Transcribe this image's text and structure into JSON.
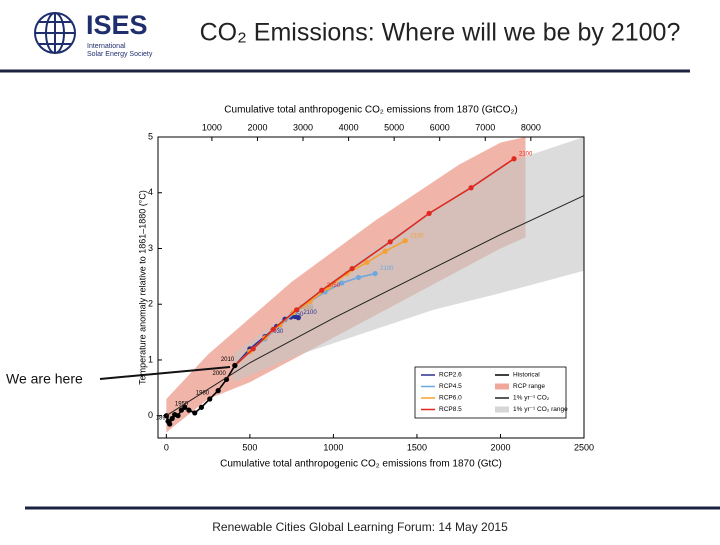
{
  "slide": {
    "logo_title": "ISES",
    "logo_subtitle": [
      "International",
      "Solar Energy Society"
    ],
    "title": "CO₂ Emissions:  Where will we be by 2100?",
    "annotation": "We are here",
    "footer": "Renewable Cities Global Learning Forum:  14 May 2015"
  },
  "chart_data": {
    "type": "line",
    "x2_label": "Cumulative total anthropogenic CO₂ emissions from 1870 (GtCO₂)",
    "x_label": "Cumulative total anthropogenic CO₂ emissions from 1870 (GtC)",
    "y_label": "Temperature anomaly relative to 1861–1880 (°C)",
    "xlim": [
      -50,
      2500
    ],
    "xticks": [
      0,
      500,
      1000,
      1500,
      2000,
      2500
    ],
    "x2lim": [
      -183,
      9167
    ],
    "x2ticks": [
      1000,
      2000,
      3000,
      4000,
      5000,
      6000,
      7000,
      8000
    ],
    "ylim": [
      -0.4,
      5
    ],
    "yticks": [
      0,
      1,
      2,
      3,
      4,
      5
    ],
    "legend": "lower right",
    "bands": [
      {
        "name": "RCP range",
        "color": "#e8826f",
        "x": [
          0,
          250,
          500,
          750,
          1000,
          1250,
          1500,
          1750,
          2000,
          2150
        ],
        "lower": [
          -0.3,
          0.3,
          0.6,
          1.0,
          1.4,
          1.8,
          2.2,
          2.6,
          3.0,
          3.2
        ],
        "upper": [
          0.3,
          1.1,
          1.75,
          2.4,
          2.95,
          3.5,
          4.0,
          4.5,
          4.9,
          5.0
        ]
      },
      {
        "name": "1% yr⁻¹ CO₂ range",
        "color": "#c4c4c4",
        "x": [
          400,
          800,
          1200,
          1600,
          2000,
          2500
        ],
        "lower": [
          0.6,
          1.1,
          1.5,
          1.9,
          2.2,
          2.6
        ],
        "upper": [
          1.1,
          2.0,
          2.9,
          3.7,
          4.5,
          5.0
        ]
      }
    ],
    "series": [
      {
        "name": "RCP2.6",
        "color": "#2b2f8f",
        "markers": true,
        "x": [
          410,
          500,
          590,
          660,
          710,
          745,
          770,
          790
        ],
        "values": [
          0.9,
          1.2,
          1.42,
          1.6,
          1.73,
          1.77,
          1.78,
          1.76
        ],
        "point_labels": [
          null,
          null,
          "2030",
          null,
          "2050",
          null,
          null,
          "2100"
        ]
      },
      {
        "name": "RCP4.5",
        "color": "#6fa8dc",
        "markers": true,
        "x": [
          410,
          500,
          590,
          680,
          770,
          860,
          950,
          1050,
          1150,
          1250
        ],
        "values": [
          0.9,
          1.15,
          1.38,
          1.62,
          1.85,
          2.05,
          2.22,
          2.38,
          2.48,
          2.55
        ],
        "point_labels": [
          null,
          null,
          null,
          null,
          "2050",
          null,
          null,
          null,
          null,
          "2100"
        ]
      },
      {
        "name": "RCP6.0",
        "color": "#f5a030",
        "markers": true,
        "x": [
          410,
          500,
          590,
          680,
          760,
          860,
          970,
          1080,
          1200,
          1310,
          1430
        ],
        "values": [
          0.9,
          1.15,
          1.4,
          1.63,
          1.85,
          2.05,
          2.3,
          2.55,
          2.75,
          2.95,
          3.14
        ],
        "point_labels": [
          null,
          null,
          null,
          null,
          "2050",
          null,
          null,
          null,
          null,
          null,
          "2100"
        ]
      },
      {
        "name": "RCP8.5",
        "color": "#e0281e",
        "markers": true,
        "x": [
          410,
          520,
          640,
          780,
          930,
          1112,
          1340,
          1573,
          1824,
          2081
        ],
        "values": [
          0.9,
          1.2,
          1.55,
          1.9,
          2.25,
          2.64,
          3.12,
          3.63,
          4.09,
          4.61
        ],
        "point_labels": [
          null,
          null,
          null,
          null,
          "2050",
          null,
          null,
          null,
          null,
          "2100"
        ]
      },
      {
        "name": "Historical",
        "color": "#000000",
        "markers": true,
        "x": [
          0,
          10,
          20,
          35,
          50,
          70,
          90,
          110,
          135,
          170,
          210,
          260,
          310,
          360,
          410
        ],
        "values": [
          0,
          -0.1,
          -0.15,
          -0.05,
          0.02,
          0.0,
          0.1,
          0.15,
          0.1,
          0.05,
          0.15,
          0.3,
          0.45,
          0.65,
          0.9
        ],
        "point_labels": [
          null,
          null,
          "1890",
          null,
          null,
          null,
          null,
          null,
          "1950",
          null,
          null,
          "1980",
          null,
          "2000",
          "2010"
        ]
      },
      {
        "name": "1% yr⁻¹ CO₂",
        "color": "#222222",
        "markers": false,
        "x": [
          0,
          500,
          1000,
          1500,
          2000,
          2500
        ],
        "values": [
          0,
          0.95,
          1.75,
          2.5,
          3.25,
          3.95
        ]
      }
    ]
  }
}
